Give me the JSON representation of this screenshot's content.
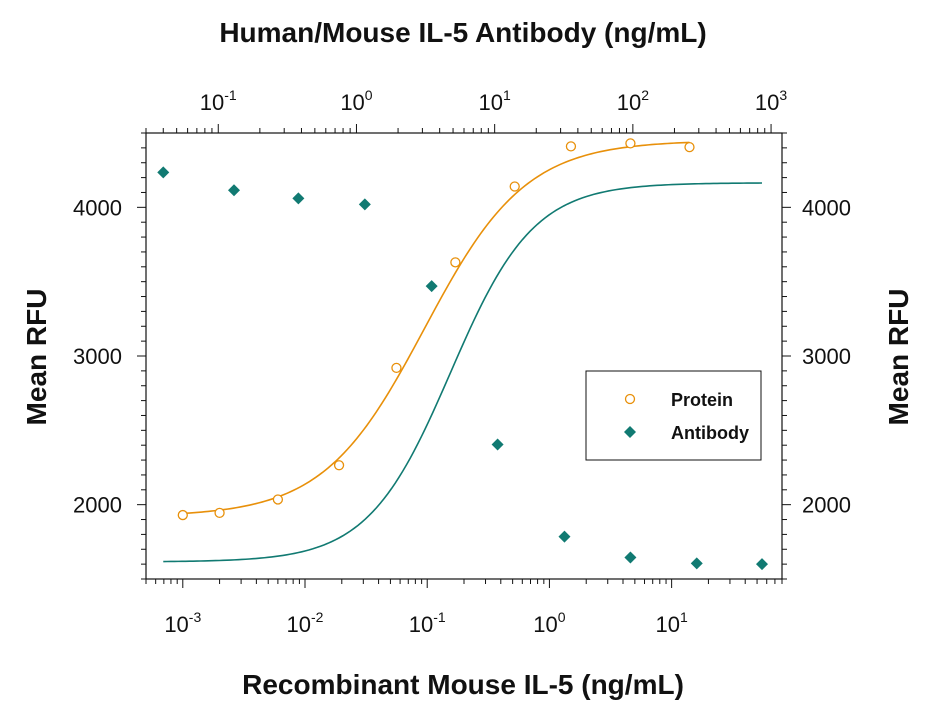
{
  "chart_data": {
    "type": "scatter",
    "title": "Human/Mouse IL-5 Antibody (ng/mL)",
    "xlabel": "Recombinant Mouse IL-5 (ng/mL)",
    "ylabel": "Mean RFU",
    "ylabel_right": "Mean RFU",
    "xscale": "log",
    "xlim": [
      0.0005,
      80
    ],
    "ylim": [
      1500,
      4500
    ],
    "x_ticks": [
      {
        "base": "10",
        "exp": "-3",
        "value": 0.001
      },
      {
        "base": "10",
        "exp": "-2",
        "value": 0.01
      },
      {
        "base": "10",
        "exp": "-1",
        "value": 0.1
      },
      {
        "base": "10",
        "exp": "0",
        "value": 1
      },
      {
        "base": "10",
        "exp": "1",
        "value": 10
      }
    ],
    "top_axis": {
      "scale": "log",
      "lim": [
        0.03,
        1200
      ],
      "ticks": [
        {
          "base": "10",
          "exp": "-1",
          "value": 0.1
        },
        {
          "base": "10",
          "exp": "0",
          "value": 1
        },
        {
          "base": "10",
          "exp": "1",
          "value": 10
        },
        {
          "base": "10",
          "exp": "2",
          "value": 100
        },
        {
          "base": "10",
          "exp": "3",
          "value": 1000
        }
      ]
    },
    "y_ticks": [
      "2000",
      "3000",
      "4000"
    ],
    "legend": {
      "position": "right-middle",
      "entries": [
        "Protein",
        "Antibody"
      ]
    },
    "grid": false,
    "series": [
      {
        "name": "Protein",
        "color": "#E8900A",
        "marker": "open-circle",
        "axis": "bottom",
        "points": [
          {
            "x": 0.001,
            "y": 1930
          },
          {
            "x": 0.002,
            "y": 1945
          },
          {
            "x": 0.006,
            "y": 2035
          },
          {
            "x": 0.019,
            "y": 2265
          },
          {
            "x": 0.056,
            "y": 2920
          },
          {
            "x": 0.17,
            "y": 3630
          },
          {
            "x": 0.52,
            "y": 4140
          },
          {
            "x": 1.5,
            "y": 4410
          },
          {
            "x": 4.6,
            "y": 4430
          },
          {
            "x": 14,
            "y": 4405
          }
        ],
        "fit": {
          "bottom": 1920,
          "top": 4450,
          "ec50": 0.095,
          "hill": 1.05
        }
      },
      {
        "name": "Antibody",
        "color": "#117A72",
        "marker": "filled-diamond",
        "axis": "top",
        "points": [
          {
            "x": 0.04,
            "y": 4235
          },
          {
            "x": 0.13,
            "y": 4115
          },
          {
            "x": 0.38,
            "y": 4060
          },
          {
            "x": 1.15,
            "y": 4020
          },
          {
            "x": 3.5,
            "y": 3470
          },
          {
            "x": 10.5,
            "y": 2405
          },
          {
            "x": 32,
            "y": 1785
          },
          {
            "x": 96,
            "y": 1645
          },
          {
            "x": 290,
            "y": 1605
          },
          {
            "x": 860,
            "y": 1600
          }
        ],
        "fit": {
          "bottom": 1615,
          "top": 4165,
          "ec50": 4.8,
          "hill": 1.45
        }
      }
    ]
  }
}
